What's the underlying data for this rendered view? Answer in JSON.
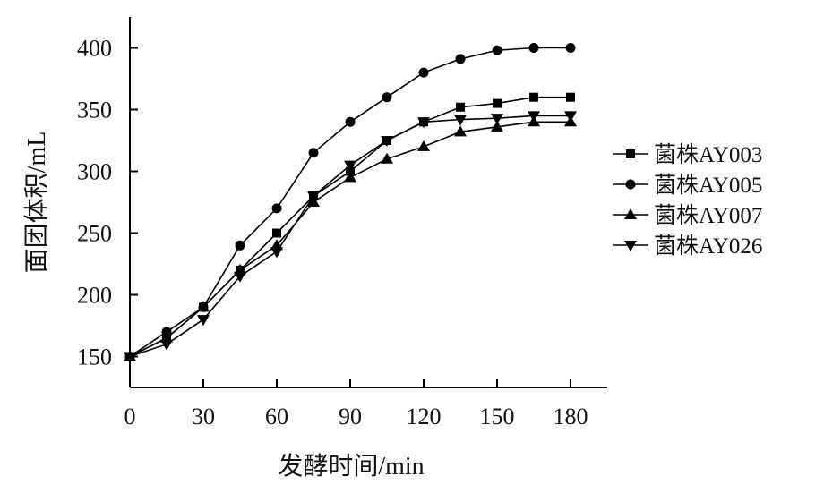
{
  "chart_data": {
    "type": "line",
    "title": "",
    "xlabel": "发酵时间/min",
    "ylabel": "面团体积/mL",
    "xlim": [
      0,
      195
    ],
    "ylim": [
      125,
      425
    ],
    "xticks": [
      0,
      30,
      60,
      90,
      120,
      150,
      180
    ],
    "yticks": [
      150,
      200,
      250,
      300,
      350,
      400
    ],
    "x": [
      0,
      15,
      30,
      45,
      60,
      75,
      90,
      105,
      120,
      135,
      150,
      165,
      180
    ],
    "grid": false,
    "legend_position": "right",
    "series": [
      {
        "name": "菌株AY003",
        "marker": "square",
        "values": [
          150,
          165,
          190,
          220,
          250,
          280,
          300,
          325,
          340,
          352,
          355,
          360,
          360
        ]
      },
      {
        "name": "菌株AY005",
        "marker": "circle",
        "values": [
          150,
          170,
          190,
          240,
          270,
          315,
          340,
          360,
          380,
          391,
          398,
          400,
          400
        ]
      },
      {
        "name": "菌株AY007",
        "marker": "triangle-up",
        "values": [
          150,
          165,
          190,
          220,
          240,
          275,
          295,
          310,
          320,
          332,
          336,
          340,
          340
        ]
      },
      {
        "name": "菌株AY026",
        "marker": "triangle-down",
        "values": [
          150,
          160,
          180,
          215,
          235,
          280,
          305,
          325,
          340,
          342,
          343,
          345,
          345
        ]
      }
    ]
  }
}
